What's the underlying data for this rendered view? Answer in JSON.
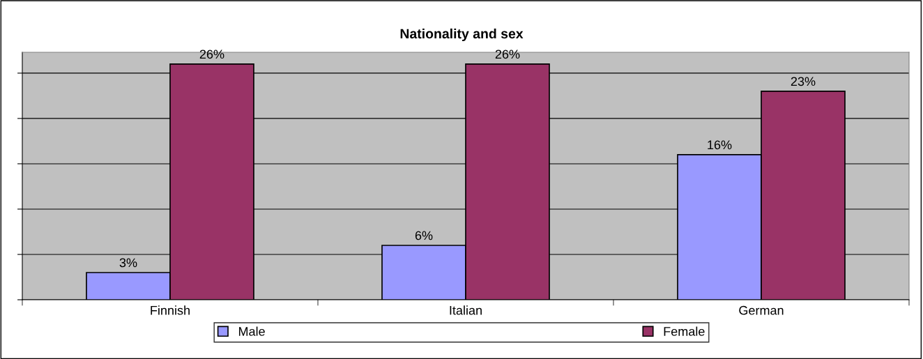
{
  "chart_data": {
    "type": "bar",
    "title": "Nationality and sex",
    "categories": [
      "Finnish",
      "Italian",
      "German"
    ],
    "series": [
      {
        "name": "Male",
        "color": "#9999ff",
        "values": [
          3,
          6,
          16
        ],
        "value_labels": [
          "3%",
          "6%",
          "16%"
        ]
      },
      {
        "name": "Female",
        "color": "#993366",
        "values": [
          26,
          26,
          23
        ],
        "value_labels": [
          "26%",
          "26%",
          "23%"
        ]
      }
    ],
    "tick_labels": "x",
    "grid": "y",
    "legend": "bottom"
  }
}
